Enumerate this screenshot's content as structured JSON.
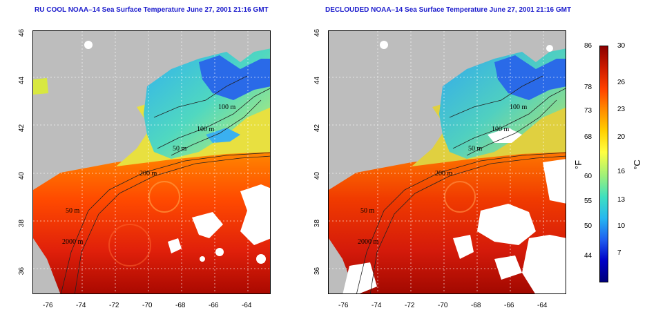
{
  "panels": [
    {
      "title": "RU COOL NOAA–14 Sea Surface Temperature June 27, 2001 21:16 GMT"
    },
    {
      "title": "DECLOUDED NOAA–14 Sea Surface Temperature June 27, 2001 21:16 GMT"
    }
  ],
  "axes": {
    "lon_labels": [
      "-76",
      "-74",
      "-72",
      "-70",
      "-68",
      "-66",
      "-64"
    ],
    "lat_labels": [
      "46",
      "44",
      "42",
      "40",
      "38",
      "36"
    ]
  },
  "contours": {
    "labels": [
      "100 m",
      "100 m",
      "50 m",
      "200 m",
      "50 m",
      "2000 m"
    ]
  },
  "colorbar": {
    "fahrenheit_unit": "°F",
    "celsius_unit": "°C",
    "fahrenheit_ticks": [
      "86",
      "78",
      "73",
      "68",
      "60",
      "55",
      "50",
      "44"
    ],
    "celsius_ticks": [
      "30",
      "26",
      "23",
      "20",
      "16",
      "13",
      "10",
      "7"
    ],
    "colors": [
      "#8b0000",
      "#cc1a00",
      "#ff4000",
      "#ff8c00",
      "#ffd000",
      "#ffff40",
      "#9ef07a",
      "#3ee0c0",
      "#26b7f0",
      "#2060f0",
      "#0000c8",
      "#00007a"
    ]
  }
}
